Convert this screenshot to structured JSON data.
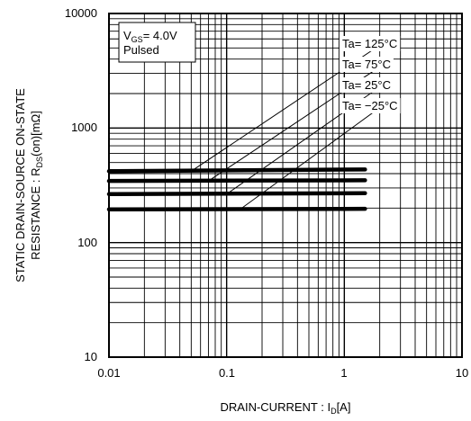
{
  "chart_data": {
    "type": "line",
    "x_scale": "log",
    "y_scale": "log",
    "xlim": [
      0.01,
      10
    ],
    "ylim": [
      10,
      10000
    ],
    "grid": true,
    "x_ticks": [
      "0.01",
      "0.1",
      "1",
      "10"
    ],
    "y_ticks": [
      "10",
      "100",
      "1000",
      "10000"
    ],
    "xlabel": {
      "main": "DRAIN-CURRENT : I",
      "sub": "D",
      "tail": "[A]"
    },
    "ylabel": {
      "line1": "STATIC DRAIN-SOURCE ON-STATE",
      "line2_main": "RESISTANCE : R",
      "line2_sub": "DS",
      "line2_tail": "(on)[mΩ]"
    },
    "condition": {
      "vgs_main": "V",
      "vgs_sub": "GS",
      "vgs_tail": "= 4.0V",
      "mode": "Pulsed"
    },
    "series": [
      {
        "name": "Ta= 125°C",
        "x": [
          0.01,
          1.5
        ],
        "y": [
          420,
          435
        ],
        "leader_from": [
          0.05,
          420
        ],
        "leader_to": [
          1.9,
          5100
        ]
      },
      {
        "name": "Ta= 75°C",
        "x": [
          0.01,
          1.5
        ],
        "y": [
          345,
          350
        ],
        "leader_from": [
          0.07,
          345
        ],
        "leader_to": [
          1.9,
          3300
        ]
      },
      {
        "name": "Ta= 25°C",
        "x": [
          0.01,
          1.5
        ],
        "y": [
          265,
          270
        ],
        "leader_from": [
          0.1,
          265
        ],
        "leader_to": [
          1.9,
          2200
        ]
      },
      {
        "name": "Ta= −25°C",
        "x": [
          0.01,
          1.5
        ],
        "y": [
          195,
          197
        ],
        "leader_from": [
          0.13,
          195
        ],
        "leader_to": [
          1.9,
          1450
        ]
      }
    ]
  }
}
